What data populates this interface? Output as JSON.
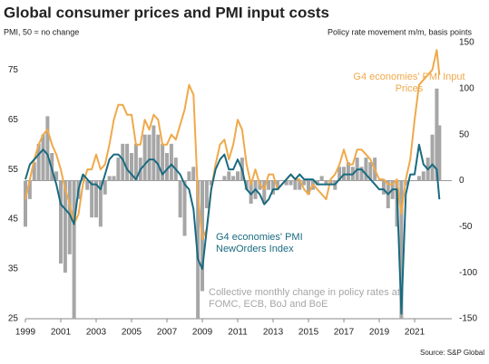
{
  "chart_data": {
    "type": "line",
    "title": "Global consumer prices and PMI input costs",
    "y_label": "PMI, 50 = no change",
    "y2_label": "Policy rate movement m/m, basis points",
    "source": "Source: S&P Global",
    "x": [
      1999,
      1999.25,
      1999.5,
      1999.75,
      2000,
      2000.25,
      2000.5,
      2000.75,
      2001,
      2001.25,
      2001.5,
      2001.75,
      2002,
      2002.25,
      2002.5,
      2002.75,
      2003,
      2003.25,
      2003.5,
      2003.75,
      2004,
      2004.25,
      2004.5,
      2004.75,
      2005,
      2005.25,
      2005.5,
      2005.75,
      2006,
      2006.25,
      2006.5,
      2006.75,
      2007,
      2007.25,
      2007.5,
      2007.75,
      2008,
      2008.25,
      2008.5,
      2008.75,
      2009,
      2009.25,
      2009.5,
      2009.75,
      2010,
      2010.25,
      2010.5,
      2010.75,
      2011,
      2011.25,
      2011.5,
      2011.75,
      2012,
      2012.25,
      2012.5,
      2012.75,
      2013,
      2013.25,
      2013.5,
      2013.75,
      2014,
      2014.25,
      2014.5,
      2014.75,
      2015,
      2015.25,
      2015.5,
      2015.75,
      2016,
      2016.25,
      2016.5,
      2016.75,
      2017,
      2017.25,
      2017.5,
      2017.75,
      2018,
      2018.25,
      2018.5,
      2018.75,
      2019,
      2019.25,
      2019.5,
      2019.75,
      2020,
      2020.25,
      2020.5,
      2020.75,
      2021,
      2021.25,
      2021.5,
      2021.75,
      2022,
      2022.25,
      2022.4
    ],
    "series": [
      {
        "name": "Collective monthly change in policy rates at FOMC, ECB, BoJ and BoE",
        "type": "bar",
        "axis": "y2",
        "color": "#a6a6a6",
        "values": [
          -50,
          -20,
          20,
          40,
          50,
          70,
          30,
          10,
          -90,
          -100,
          -80,
          -150,
          -20,
          5,
          -10,
          -40,
          -40,
          -50,
          -15,
          5,
          5,
          25,
          40,
          40,
          30,
          40,
          25,
          50,
          50,
          60,
          50,
          40,
          30,
          40,
          25,
          -40,
          -60,
          10,
          15,
          -150,
          -120,
          -30,
          -5,
          0,
          0,
          5,
          10,
          5,
          10,
          25,
          -10,
          -25,
          -20,
          -10,
          -25,
          -10,
          -15,
          -10,
          0,
          -5,
          -5,
          -10,
          -10,
          -5,
          -15,
          -10,
          -5,
          5,
          -5,
          -5,
          -10,
          15,
          15,
          20,
          15,
          25,
          15,
          25,
          20,
          25,
          0,
          -15,
          -30,
          -20,
          -50,
          -150,
          -5,
          0,
          0,
          5,
          10,
          25,
          50,
          100,
          60
        ]
      },
      {
        "name": "G4 economies' PMI Input Prices",
        "type": "line",
        "color": "#f0a94a",
        "values": [
          49,
          53,
          57,
          60,
          62,
          63,
          60,
          58,
          55,
          51,
          48,
          44,
          46,
          52,
          55,
          55,
          58,
          55,
          56,
          60,
          65,
          68,
          68,
          66,
          66,
          60,
          60,
          65,
          63,
          66,
          65,
          60,
          60,
          62,
          61,
          64,
          67,
          72,
          70,
          50,
          41,
          43,
          51,
          56,
          60,
          61,
          57,
          60,
          65,
          63,
          56,
          52,
          55,
          52,
          51,
          54,
          54,
          51,
          52,
          53,
          54,
          53,
          53,
          51,
          50,
          52,
          51,
          50,
          49,
          53,
          54,
          56,
          59,
          56,
          56,
          59,
          59,
          58,
          57,
          55,
          53,
          53,
          52,
          52,
          53,
          46,
          53,
          57,
          65,
          72,
          73,
          74,
          75,
          79,
          74
        ]
      },
      {
        "name": "G4 economies' PMI NewOrders Index",
        "type": "line",
        "color": "#1a6b80",
        "values": [
          53,
          56,
          57,
          58,
          59,
          58,
          55,
          52,
          48,
          47,
          46,
          44,
          51,
          54,
          53,
          52,
          52,
          51,
          54,
          57,
          58,
          58,
          57,
          55,
          54,
          53,
          55,
          56,
          57,
          57,
          56,
          54,
          55,
          56,
          55,
          54,
          52,
          51,
          47,
          37,
          35,
          43,
          51,
          55,
          57,
          58,
          55,
          55,
          57,
          55,
          51,
          50,
          51,
          50,
          48,
          49,
          51,
          51,
          52,
          53,
          54,
          53,
          54,
          53,
          53,
          53,
          52,
          52,
          52,
          52,
          52,
          53,
          54,
          54,
          54,
          55,
          55,
          54,
          53,
          52,
          51,
          51,
          50,
          51,
          51,
          26,
          50,
          54,
          54,
          60,
          56,
          55,
          56,
          55,
          49
        ]
      }
    ],
    "xlim": [
      1999,
      2023.1
    ],
    "xticks": [
      1999,
      2001,
      2003,
      2005,
      2007,
      2009,
      2011,
      2013,
      2015,
      2017,
      2019,
      2021
    ],
    "ylim": [
      25,
      80.5
    ],
    "yticks": [
      25,
      35,
      45,
      55,
      65,
      75
    ],
    "y2lim": [
      -150,
      150
    ],
    "y2ticks": [
      -150,
      -100,
      -50,
      0,
      50,
      100,
      150
    ]
  }
}
